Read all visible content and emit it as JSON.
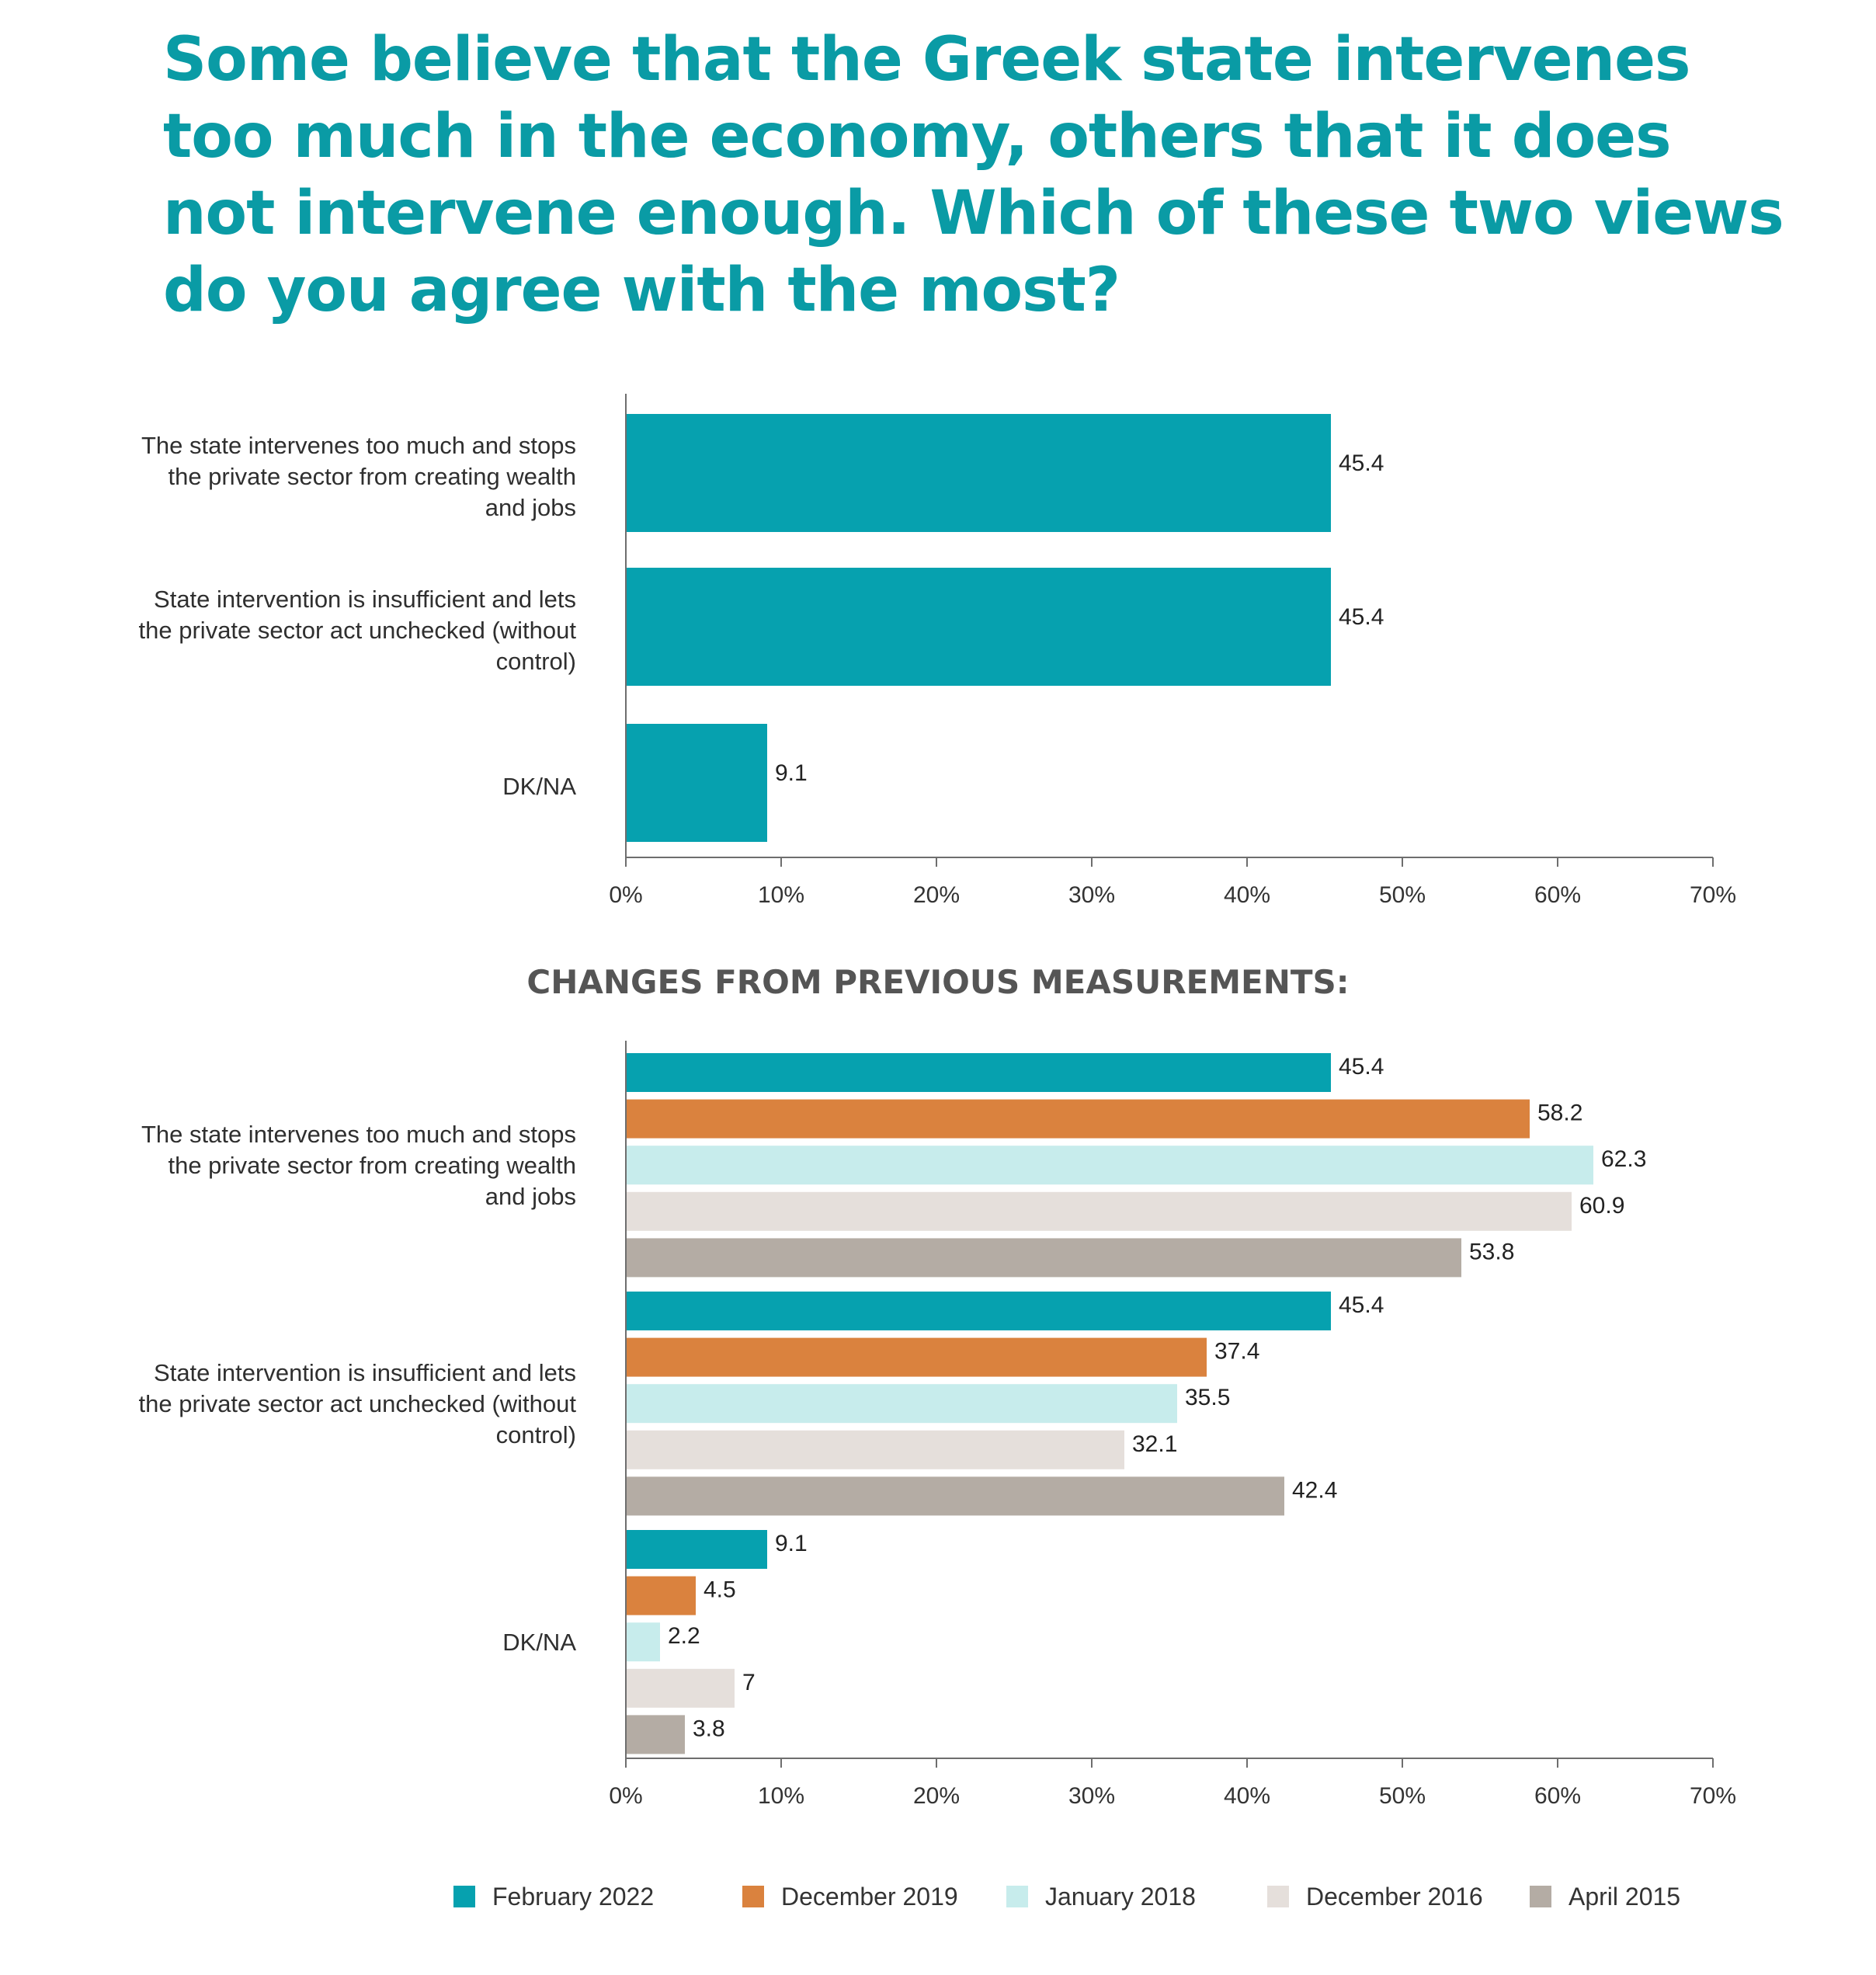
{
  "title": "Some believe that the Greek state intervenes too much in the economy, others that it does not intervene enough. Which of these two views do you agree with the most?",
  "subtitle": "CHANGES FROM PREVIOUS MEASUREMENTS:",
  "colors": {
    "February 2022": "#06a1af",
    "December 2019": "#da823e",
    "January 2018": "#c7ecec",
    "December 2016": "#e5dfdb",
    "April 2015": "#b4aca4"
  },
  "chart_data": [
    {
      "type": "bar",
      "orientation": "horizontal",
      "categories": [
        [
          "The state intervenes too much and stops",
          "the private sector from creating wealth",
          "and jobs"
        ],
        [
          "State intervention is insufficient and lets",
          "the private sector act unchecked (without",
          "control)"
        ],
        [
          "DK/NA"
        ]
      ],
      "values": [
        45.4,
        45.4,
        9.1
      ],
      "value_labels": [
        "45.4",
        "45.4",
        "9.1"
      ],
      "xlim": [
        0,
        70
      ],
      "xticks": [
        "0%",
        "10%",
        "20%",
        "30%",
        "40%",
        "50%",
        "60%",
        "70%"
      ],
      "grid": false
    },
    {
      "type": "bar",
      "orientation": "horizontal",
      "title": "CHANGES FROM PREVIOUS MEASUREMENTS:",
      "categories": [
        [
          "The state intervenes too much and stops",
          "the private sector from creating wealth",
          "and jobs"
        ],
        [
          "State intervention is insufficient and lets",
          "the private sector act unchecked (without",
          "control)"
        ],
        [
          "DK/NA"
        ]
      ],
      "series": [
        {
          "name": "February 2022",
          "values": [
            45.4,
            45.4,
            9.1
          ],
          "labels": [
            "45.4",
            "45.4",
            "9.1"
          ]
        },
        {
          "name": "December 2019",
          "values": [
            58.2,
            37.4,
            4.5
          ],
          "labels": [
            "58.2",
            "37.4",
            "4.5"
          ]
        },
        {
          "name": "January 2018",
          "values": [
            62.3,
            35.5,
            2.2
          ],
          "labels": [
            "62.3",
            "35.5",
            "2.2"
          ]
        },
        {
          "name": "December 2016",
          "values": [
            60.9,
            32.1,
            7
          ],
          "labels": [
            "60.9",
            "32.1",
            "7"
          ]
        },
        {
          "name": "April 2015",
          "values": [
            53.8,
            42.4,
            3.8
          ],
          "labels": [
            "53.8",
            "42.4",
            "3.8"
          ]
        }
      ],
      "xlim": [
        0,
        70
      ],
      "xticks": [
        "0%",
        "10%",
        "20%",
        "30%",
        "40%",
        "50%",
        "60%",
        "70%"
      ],
      "grid": false,
      "legend": "bottom"
    }
  ]
}
